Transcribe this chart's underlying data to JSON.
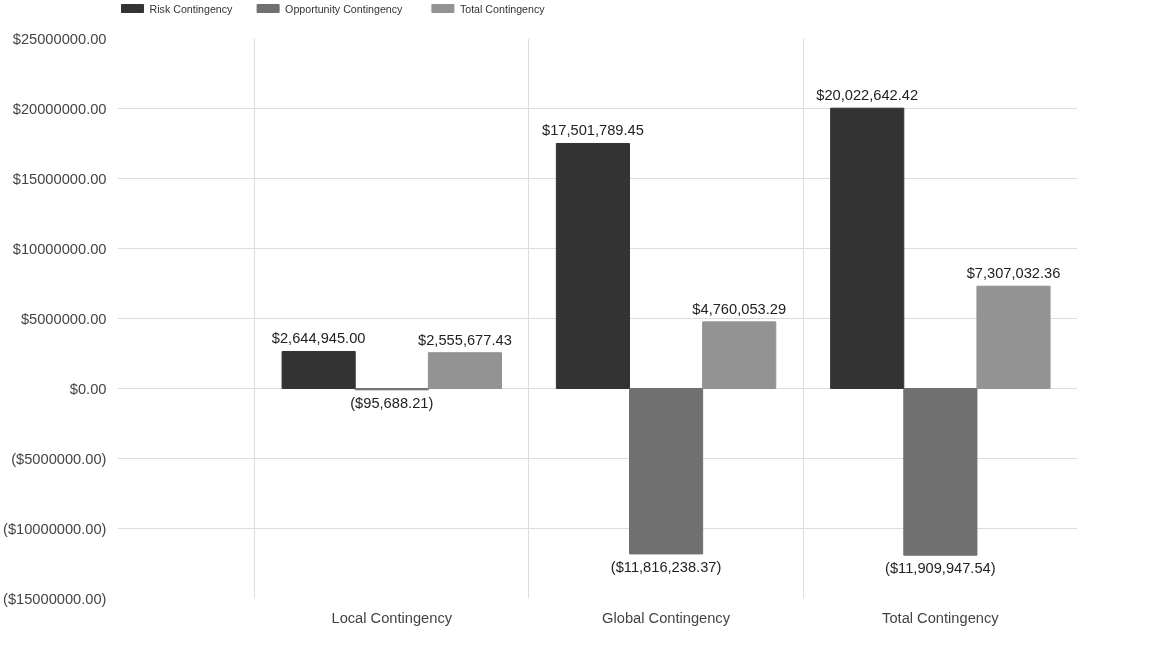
{
  "chart_data": {
    "type": "bar",
    "categories": [
      "Local Contingency",
      "Global Contingency",
      "Total Contingency"
    ],
    "series": [
      {
        "name": "Risk Contingency",
        "color": "#333333",
        "values": [
          2644945.0,
          17501789.45,
          20022642.42
        ],
        "value_labels": [
          "$2,644,945.00",
          "$17,501,789.45",
          "$20,022,642.42"
        ]
      },
      {
        "name": "Opportunity Contingency",
        "color": "#707070",
        "values": [
          -95688.21,
          -11816238.37,
          -11909947.54
        ],
        "value_labels": [
          "($95,688.21)",
          "($11,816,238.37)",
          "($11,909,947.54)"
        ]
      },
      {
        "name": "Total Contingency",
        "color": "#939393",
        "values": [
          2555677.43,
          4760053.29,
          7307032.36
        ],
        "value_labels": [
          "$2,555,677.43",
          "$4,760,053.29",
          "$7,307,032.36"
        ]
      }
    ],
    "ylim": [
      -15000000,
      25000000
    ],
    "yticks": [
      {
        "value": -15000000,
        "label": "($15000000.00)"
      },
      {
        "value": -10000000,
        "label": "($10000000.00)"
      },
      {
        "value": -5000000,
        "label": "($5000000.00)"
      },
      {
        "value": 0,
        "label": "$0.00"
      },
      {
        "value": 5000000,
        "label": "$5000000.00"
      },
      {
        "value": 10000000,
        "label": "$10000000.00"
      },
      {
        "value": 15000000,
        "label": "$15000000.00"
      },
      {
        "value": 20000000,
        "label": "$20000000.00"
      },
      {
        "value": 25000000,
        "label": "$25000000.00"
      }
    ],
    "grid": true,
    "legend": "top left"
  }
}
